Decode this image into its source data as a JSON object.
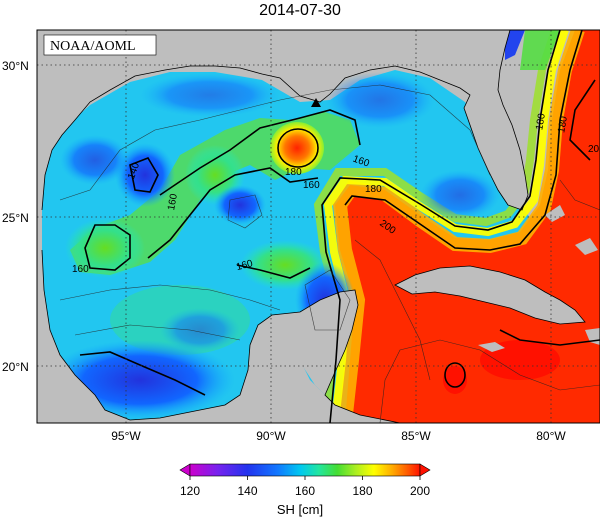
{
  "title": "2014-07-30",
  "credit": "NOAA/AOML",
  "lon_ticks": [
    "95°W",
    "90°W",
    "85°W",
    "80°W"
  ],
  "lat_ticks": [
    "30°N",
    "25°N",
    "20°N"
  ],
  "contour_labels": [
    "140",
    "160",
    "160",
    "160",
    "180",
    "180",
    "160",
    "180",
    "200",
    "160",
    "180",
    "20"
  ],
  "colorbar": {
    "label": "SH [cm]",
    "ticks": [
      "120",
      "140",
      "160",
      "180",
      "200"
    ],
    "colors": [
      "#cc00cc",
      "#7722ee",
      "#2233ee",
      "#1177ff",
      "#00c8f0",
      "#22e6a0",
      "#44dd33",
      "#aaee22",
      "#ffff00",
      "#ffaa00",
      "#ff5500",
      "#ff1100"
    ]
  },
  "map_colors": {
    "land": "#bebebe",
    "warm_core": "#ff2200",
    "loop_current": "#ff3300"
  }
}
